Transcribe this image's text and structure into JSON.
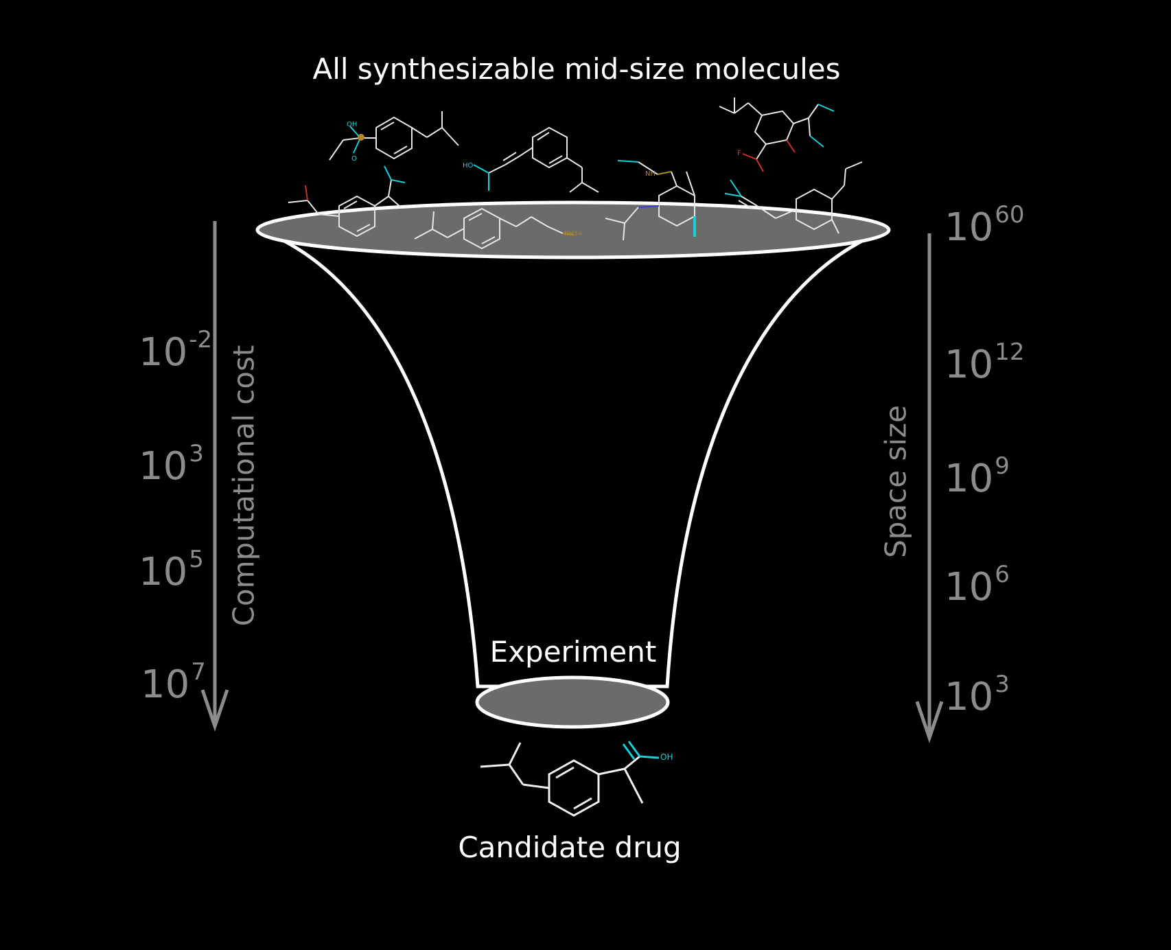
{
  "title": "All synthesizable mid-size molecules",
  "funnel_label": "Experiment",
  "bottom_label": "Candidate drug",
  "left_axis": {
    "label": "Computational cost",
    "ticks": [
      {
        "base": "10",
        "exp": "-2"
      },
      {
        "base": "10",
        "exp": "3"
      },
      {
        "base": "10",
        "exp": "5"
      },
      {
        "base": "10",
        "exp": "7"
      }
    ]
  },
  "right_axis": {
    "label": "Space size",
    "ticks": [
      {
        "base": "10",
        "exp": "60"
      },
      {
        "base": "10",
        "exp": "12"
      },
      {
        "base": "10",
        "exp": "9"
      },
      {
        "base": "10",
        "exp": "6"
      },
      {
        "base": "10",
        "exp": "3"
      }
    ]
  },
  "molecule_labels": {
    "oh": "OH",
    "o": "O",
    "ho": "HO",
    "f": "F",
    "nh": "NH",
    "nh3": "NH3+"
  },
  "colors": {
    "background": "#000000",
    "funnel_outline": "#ffffff",
    "funnel_fill": "#6b6b6b",
    "axis_gray": "#8c8c8c",
    "oxygen_cyan": "#19d0d8",
    "nitrogen_blue": "#3a3ad8",
    "sulfur_gold": "#b08a20",
    "fluorine_red": "#cc3030"
  }
}
